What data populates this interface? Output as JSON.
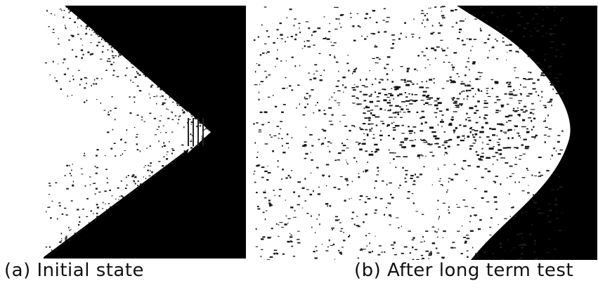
{
  "figure": {
    "panels": [
      {
        "id": "a",
        "caption": "(a) Initial state",
        "subject": "v-shaped white region against black background",
        "colors": {
          "foreground": "#ffffff",
          "background": "#000000",
          "speckle": "#1a1a1a"
        }
      },
      {
        "id": "b",
        "caption": "(b) After long term test",
        "subject": "rounded white region with heavy black speckle, black corners",
        "colors": {
          "foreground": "#ffffff",
          "background": "#000000",
          "speckle": "#1a1a1a"
        }
      }
    ]
  }
}
